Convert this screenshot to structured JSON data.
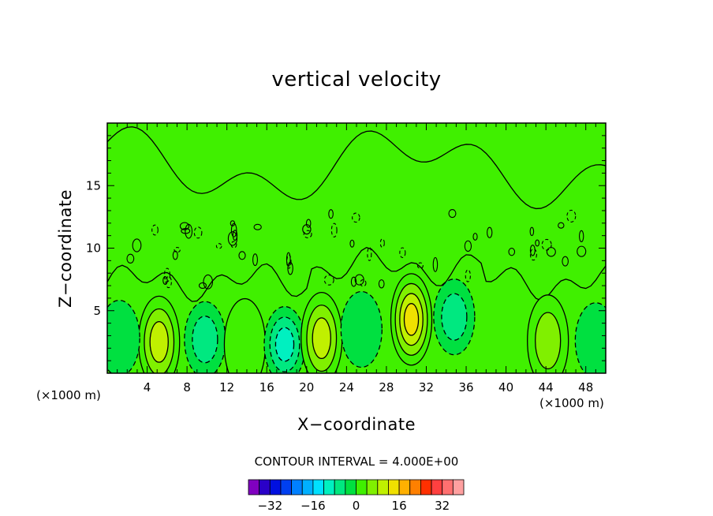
{
  "chart_data": {
    "type": "heatmap",
    "title": "vertical velocity",
    "xlabel": "X−coordinate",
    "ylabel": "Z−coordinate",
    "x_unit_label": "(×1000 m)",
    "xlim": [
      0,
      50
    ],
    "ylim": [
      0,
      20
    ],
    "x_ticks": [
      4,
      8,
      12,
      16,
      20,
      24,
      28,
      32,
      36,
      40,
      44,
      48
    ],
    "y_ticks": [
      5,
      10,
      15
    ],
    "contour_interval_label": "CONTOUR INTERVAL = 4.000E+00",
    "contour_interval": 4.0,
    "colorbar": {
      "tick_labels": [
        "−32",
        "−16",
        "0",
        "16",
        "32"
      ],
      "tick_values": [
        -32,
        -16,
        0,
        16,
        32
      ],
      "colors": [
        "#8000c0",
        "#2a00c8",
        "#0010e0",
        "#0040f0",
        "#0080ff",
        "#00b0ff",
        "#00e0ff",
        "#00f0c0",
        "#00e880",
        "#00e040",
        "#40f000",
        "#80f000",
        "#c0f000",
        "#f0e000",
        "#ffb000",
        "#ff8000",
        "#ff3000",
        "#ff4040",
        "#ff7070",
        "#ffa0a0"
      ]
    },
    "features": [
      {
        "kind": "updraft",
        "x": 5.2,
        "z": 2.5,
        "peak": 12
      },
      {
        "kind": "downdraft",
        "x": 9.8,
        "z": 2.7,
        "peak": -8
      },
      {
        "kind": "updraft",
        "x": 13.8,
        "z": 2.3,
        "peak": 4
      },
      {
        "kind": "downdraft",
        "x": 17.8,
        "z": 2.3,
        "peak": -12
      },
      {
        "kind": "updraft",
        "x": 21.5,
        "z": 2.8,
        "peak": 12
      },
      {
        "kind": "downdraft",
        "x": 25.5,
        "z": 3.5,
        "peak": -4
      },
      {
        "kind": "updraft",
        "x": 30.5,
        "z": 4.3,
        "peak": 16
      },
      {
        "kind": "downdraft",
        "x": 34.8,
        "z": 4.5,
        "peak": -8
      },
      {
        "kind": "updraft",
        "x": 44.2,
        "z": 2.6,
        "peak": 8
      },
      {
        "kind": "downdraft",
        "x": 49.0,
        "z": 2.6,
        "peak": -4
      },
      {
        "kind": "downdraft",
        "x": 1.2,
        "z": 2.8,
        "peak": -4
      }
    ]
  }
}
